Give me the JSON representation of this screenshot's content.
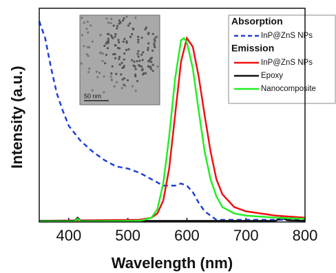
{
  "chart_data": {
    "type": "line",
    "xlabel": "Wavelength (nm)",
    "ylabel": "Intensity (a.u.)",
    "xlim": [
      350,
      800
    ],
    "xticks": [
      400,
      500,
      600,
      700,
      800
    ],
    "ylim": [
      0,
      1
    ],
    "inset": {
      "scale_label": "50 nm"
    },
    "series": [
      {
        "name": "InP@ZnS NPs",
        "legend_heading": "Absorption",
        "color": "#1f3fd6",
        "linestyle": "dashed",
        "x": [
          350,
          360,
          370,
          380,
          390,
          400,
          420,
          440,
          460,
          480,
          500,
          520,
          540,
          560,
          580,
          590,
          600,
          610,
          620,
          630,
          650,
          700,
          800
        ],
        "values": [
          0.94,
          0.86,
          0.72,
          0.6,
          0.52,
          0.45,
          0.38,
          0.33,
          0.29,
          0.26,
          0.25,
          0.23,
          0.2,
          0.17,
          0.17,
          0.18,
          0.17,
          0.14,
          0.09,
          0.05,
          0.01,
          0.01,
          0.01
        ]
      },
      {
        "name": "InP@ZnS NPs",
        "legend_heading": "Emission",
        "color": "#ee1111",
        "linestyle": "solid",
        "x": [
          350,
          520,
          540,
          550,
          560,
          570,
          580,
          590,
          600,
          610,
          620,
          630,
          640,
          650,
          660,
          680,
          700,
          750,
          800
        ],
        "values": [
          0.005,
          0.01,
          0.02,
          0.04,
          0.1,
          0.25,
          0.5,
          0.75,
          0.86,
          0.82,
          0.68,
          0.5,
          0.33,
          0.2,
          0.13,
          0.07,
          0.05,
          0.03,
          0.02
        ]
      },
      {
        "name": "Epoxy",
        "color": "#111111",
        "linestyle": "solid",
        "x": [
          350,
          410,
          415,
          420,
          600,
          750,
          760,
          770,
          800
        ],
        "values": [
          0.005,
          0.005,
          0.02,
          0.005,
          0.005,
          0.005,
          0.02,
          0.008,
          0.005
        ]
      },
      {
        "name": "Nanocomposite",
        "color": "#22ee22",
        "linestyle": "solid",
        "x": [
          350,
          410,
          415,
          420,
          520,
          540,
          550,
          560,
          570,
          580,
          590,
          595,
          600,
          610,
          620,
          630,
          640,
          650,
          660,
          680,
          700,
          750,
          800
        ],
        "values": [
          0.003,
          0.003,
          0.015,
          0.003,
          0.005,
          0.02,
          0.06,
          0.18,
          0.4,
          0.67,
          0.85,
          0.86,
          0.84,
          0.72,
          0.52,
          0.33,
          0.2,
          0.12,
          0.07,
          0.04,
          0.03,
          0.02,
          0.015
        ]
      }
    ]
  }
}
